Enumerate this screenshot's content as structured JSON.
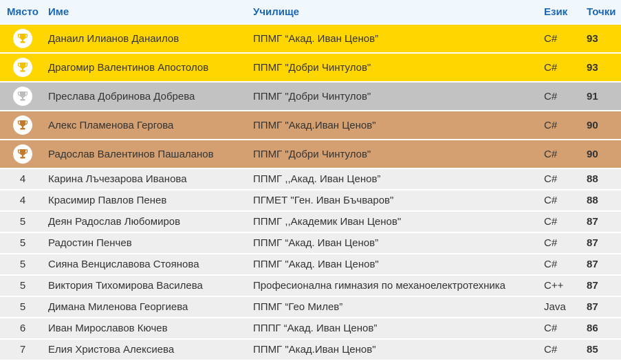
{
  "headers": {
    "place": "Място",
    "name": "Име",
    "school": "Училище",
    "lang": "Език",
    "points": "Точки"
  },
  "colors": {
    "gold": "#ffd600",
    "silver": "#c2c2c2",
    "bronze": "#d4a072",
    "header_text": "#1a66b5"
  },
  "medal_rows": [
    {
      "medal": "gold",
      "name": "Данаил Илианов Данаилов",
      "school": "ППМГ “Акад. Иван Ценов”",
      "lang": "C#",
      "points": "93"
    },
    {
      "medal": "gold",
      "name": "Драгомир Валентинов Апостолов",
      "school": "ППМГ \"Добри Чинтулов\"",
      "lang": "C#",
      "points": "93"
    },
    {
      "medal": "silver",
      "name": "Преслава Добринова Добрева",
      "school": "ППМГ \"Добри Чинтулов\"",
      "lang": "C#",
      "points": "91"
    },
    {
      "medal": "bronze",
      "name": "Алекс Пламенова Гергова",
      "school": "ППМГ \"Акад.Иван Ценов\"",
      "lang": "C#",
      "points": "90"
    },
    {
      "medal": "bronze",
      "name": "Радослав Валентинов Пашаланов",
      "school": "ППМГ \"Добри Чинтулов\"",
      "lang": "C#",
      "points": "90"
    }
  ],
  "rows": [
    {
      "place": "4",
      "name": "Карина Лъчезарова Иванова",
      "school": "ППМГ ,,Акад. Иван Ценов”",
      "lang": "C#",
      "points": "88"
    },
    {
      "place": "4",
      "name": "Красимир Павлов Пенев",
      "school": "ПГМЕТ \"Ген. Иван Бъчваров\"",
      "lang": "C#",
      "points": "88"
    },
    {
      "place": "5",
      "name": "Деян Радослав Любомиров",
      "school": "ППМГ ,,Академик Иван Ценов\"",
      "lang": "C#",
      "points": "87"
    },
    {
      "place": "5",
      "name": "Радостин Пенчев",
      "school": "ППМГ “Акад. Иван Ценов”",
      "lang": "C#",
      "points": "87"
    },
    {
      "place": "5",
      "name": "Сияна Венциславова Стоянова",
      "school": "ППМГ \"Акад. Иван Ценов\"",
      "lang": "C#",
      "points": "87"
    },
    {
      "place": "5",
      "name": "Виктория Тихомирова Василева",
      "school": "Професионална гимназия по механоелектротехника",
      "lang": "C++",
      "points": "87"
    },
    {
      "place": "5",
      "name": "Димана Миленова Георгиева",
      "school": "ППМГ “Гео Милев”",
      "lang": "Java",
      "points": "87"
    },
    {
      "place": "6",
      "name": "Иван Мирославов Кючев",
      "school": "ПППГ “Акад. Иван Ценов”",
      "lang": "C#",
      "points": "86"
    },
    {
      "place": "7",
      "name": "Елия Христова Алексиева",
      "school": "ППМГ \"Акад.Иван Ценов\"",
      "lang": "C#",
      "points": "85"
    }
  ]
}
